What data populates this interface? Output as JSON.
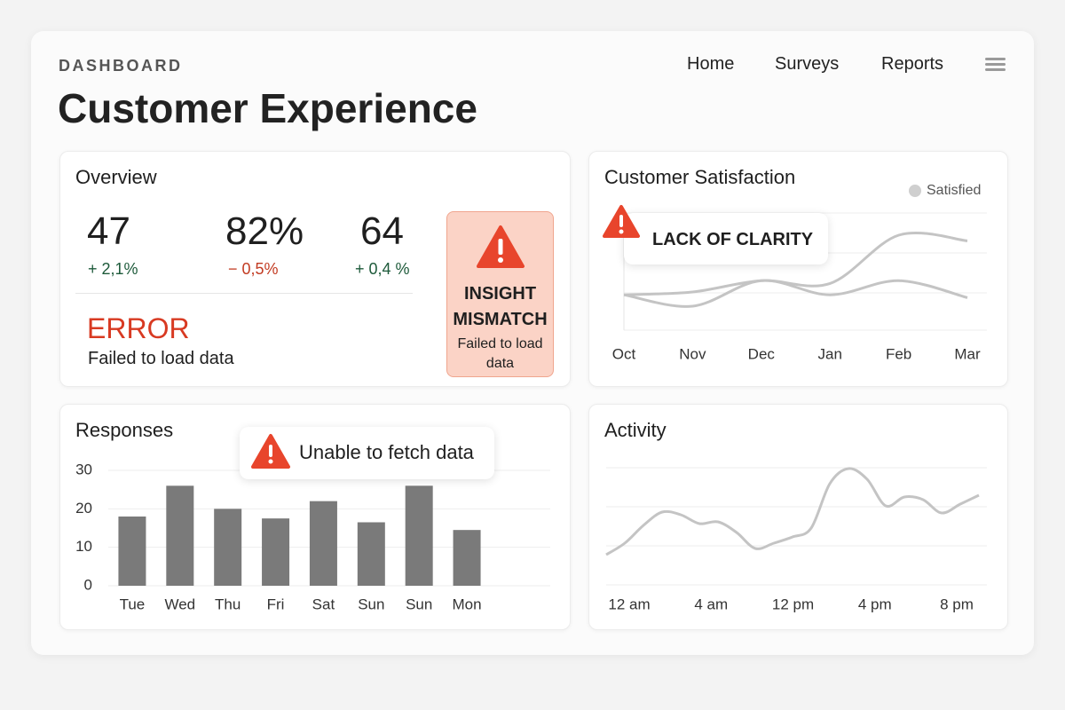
{
  "header": {
    "eyebrow": "DASHBOARD",
    "title": "Customer Experience",
    "nav": [
      "Home",
      "Surveys",
      "Reports"
    ]
  },
  "overview": {
    "title": "Overview",
    "kpis": [
      {
        "value": "47",
        "delta": "+ 2,1%"
      },
      {
        "value": "82%",
        "delta": "− 0,5%"
      },
      {
        "value": "64",
        "delta": "+ 0,4 %"
      }
    ],
    "error": {
      "title": "ERROR",
      "message": "Failed to load data"
    },
    "alert": {
      "title": "INSIGHT MISMATCH",
      "message": "Failed to load data"
    }
  },
  "satisfaction": {
    "title": "Customer Satisfaction",
    "alert": "LACK OF CLARITY",
    "chart_data": {
      "type": "line",
      "categories": [
        "Oct",
        "Nov",
        "Dec",
        "Jan",
        "Feb",
        "Mar"
      ],
      "series": [
        {
          "name": "Satisfied",
          "color": "#c4c4c4",
          "values": [
            30,
            32,
            40,
            38,
            72,
            68
          ]
        },
        {
          "color": "#c4c4c4",
          "values": [
            30,
            22,
            40,
            30,
            40,
            28
          ]
        }
      ],
      "grid": true,
      "legend": "top-right"
    }
  },
  "responses": {
    "title": "Responses",
    "alert": "Unable to fetch data",
    "chart_data": {
      "type": "bar",
      "categories": [
        "Tue",
        "Wed",
        "Thu",
        "Fri",
        "Sat",
        "Sun",
        "Sun",
        "Mon"
      ],
      "values": [
        18,
        26,
        20,
        17.5,
        22,
        16.5,
        26,
        14.5
      ],
      "color": "#7a7a7a",
      "ylim": [
        0,
        30
      ],
      "yticks": [
        0,
        10,
        20,
        30
      ],
      "grid": true
    }
  },
  "activity": {
    "title": "Activity",
    "chart_data": {
      "type": "line",
      "xticks": [
        "12 am",
        "4 am",
        "12 pm",
        "4 pm",
        "8 pm"
      ],
      "values": [
        35,
        48,
        68,
        83,
        80,
        70,
        72,
        60,
        42,
        48,
        55,
        65,
        115,
        132,
        120,
        90,
        100,
        97,
        82,
        92,
        102
      ],
      "color": "#c4c4c4",
      "grid": true
    }
  }
}
